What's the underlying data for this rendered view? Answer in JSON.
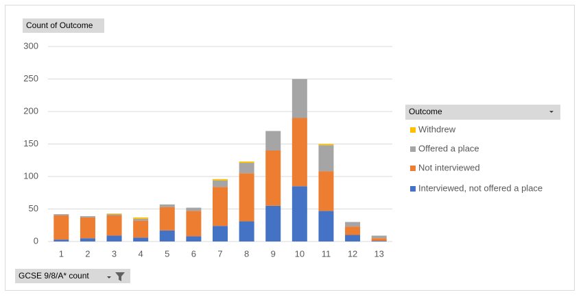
{
  "chart_data": {
    "type": "stacked-bar",
    "value_field_button": "Count of Outcome",
    "axis_field_button": "GCSE 9/8/A* count",
    "legend_title": "Outcome",
    "categories": [
      "1",
      "2",
      "3",
      "4",
      "5",
      "6",
      "7",
      "8",
      "9",
      "10",
      "11",
      "12",
      "13"
    ],
    "series": [
      {
        "name": "Interviewed, not offered a place",
        "color": "#4472c4",
        "values": [
          3,
          5,
          9,
          6,
          17,
          8,
          24,
          31,
          55,
          85,
          47,
          10,
          1
        ]
      },
      {
        "name": "Not interviewed",
        "color": "#ed7d31",
        "values": [
          37,
          32,
          31,
          26,
          36,
          39,
          60,
          74,
          85,
          105,
          61,
          13,
          4
        ]
      },
      {
        "name": "Offered a place",
        "color": "#a5a5a5",
        "values": [
          2,
          2,
          2,
          3,
          4,
          5,
          10,
          16,
          30,
          60,
          40,
          7,
          4
        ]
      },
      {
        "name": "Withdrew",
        "color": "#ffc000",
        "values": [
          0,
          0,
          1,
          2,
          0,
          0,
          2,
          2,
          0,
          0,
          2,
          0,
          0
        ]
      }
    ],
    "ylim": [
      0,
      300
    ],
    "yticks": [
      0,
      50,
      100,
      150,
      200,
      250,
      300
    ],
    "grid": true,
    "legend": "right"
  }
}
